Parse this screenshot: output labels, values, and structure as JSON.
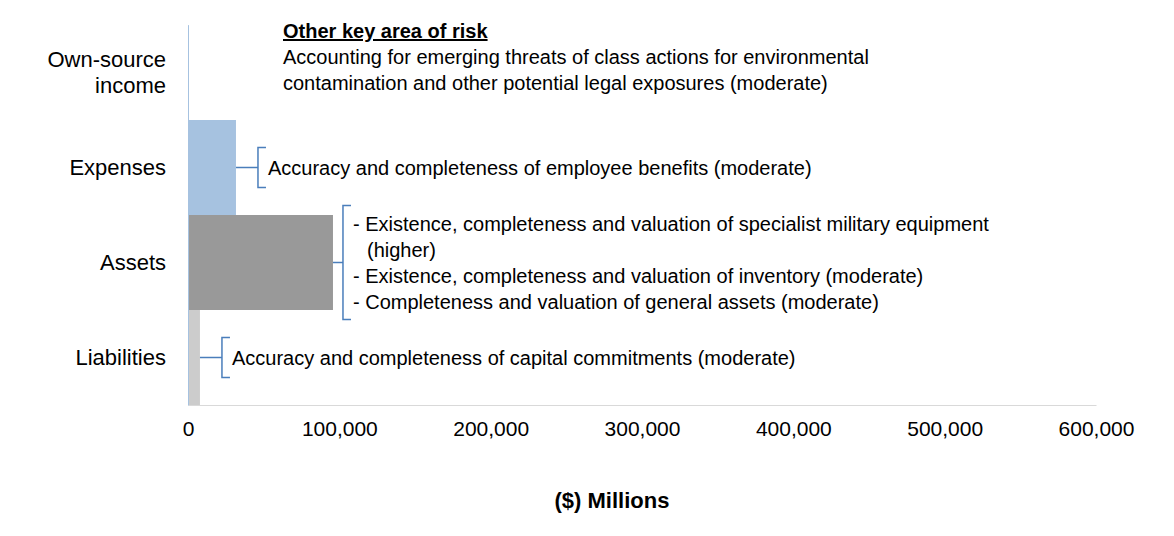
{
  "chart_data": {
    "type": "bar",
    "orientation": "horizontal",
    "categories": [
      "Own-source income",
      "Expenses",
      "Assets",
      "Liabilities"
    ],
    "values": [
      500,
      31700,
      95800,
      7900
    ],
    "colors": [
      "#a6c2e0",
      "#a6c2e0",
      "#999999",
      "#cccccc"
    ],
    "xlim": [
      0,
      600000
    ],
    "xticks": [
      0,
      {
        "value": 100000,
        "label": "100,000"
      },
      {
        "value": 200000,
        "label": "200,000"
      },
      {
        "value": 300000,
        "label": "300,000"
      },
      {
        "value": 400000,
        "label": "400,000"
      },
      {
        "value": 500000,
        "label": "500,000"
      },
      {
        "value": 600000,
        "label": "600,000"
      }
    ],
    "x_label": "($) Millions",
    "grid": false,
    "annotations": [
      {
        "category": "Expenses",
        "lines": [
          "Accuracy and completeness of employee benefits (moderate)"
        ]
      },
      {
        "category": "Assets",
        "lines": [
          "- Existence, completeness and valuation of specialist military equipment",
          "(higher)",
          "- Existence, completeness and valuation of inventory (moderate)",
          "- Completeness and valuation of general assets (moderate)"
        ]
      },
      {
        "category": "Liabilities",
        "lines": [
          "Accuracy and completeness of capital commitments (moderate)"
        ]
      }
    ],
    "other_risk": {
      "title": "Other key area of risk",
      "lines": [
        "Accounting for emerging threats of class actions for environmental",
        "contamination and other potential legal exposures (moderate)"
      ]
    }
  }
}
